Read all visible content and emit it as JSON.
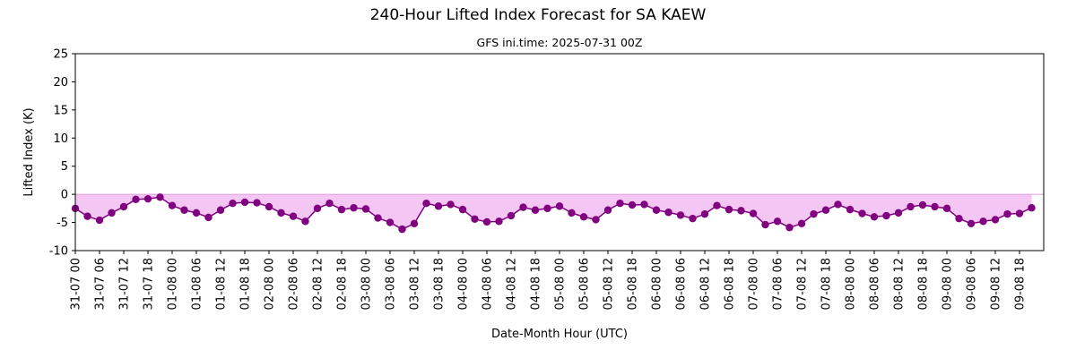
{
  "chart_data": {
    "type": "line",
    "title": "240-Hour Lifted Index Forecast for SA KAEW",
    "subtitle": "GFS ini.time: 2025-07-31 00Z",
    "xlabel": "Date-Month Hour (UTC)",
    "ylabel": "Lifted Index (K)",
    "ylim": [
      -10,
      25
    ],
    "yticks": [
      -10,
      -5,
      0,
      5,
      10,
      15,
      20,
      25
    ],
    "grid": false,
    "fill_below_zero": true,
    "colors": {
      "line": "#800080",
      "fill": "#f3c6f3",
      "zero_line": "#dda0dd"
    },
    "x_start_hour": 0,
    "x_end_hour": 240,
    "step_hours": 3,
    "x_tick_labels": [
      "31-07 00",
      "31-07 06",
      "31-07 12",
      "31-07 18",
      "01-08 00",
      "01-08 06",
      "01-08 12",
      "01-08 18",
      "02-08 00",
      "02-08 06",
      "02-08 12",
      "02-08 18",
      "03-08 00",
      "03-08 06",
      "03-08 12",
      "03-08 18",
      "04-08 00",
      "04-08 06",
      "04-08 12",
      "04-08 18",
      "05-08 00",
      "05-08 06",
      "05-08 12",
      "05-08 18",
      "06-08 00",
      "06-08 06",
      "06-08 12",
      "06-08 18",
      "07-08 00",
      "07-08 06",
      "07-08 12",
      "07-08 18",
      "08-08 00",
      "08-08 06",
      "08-08 12",
      "08-08 18",
      "09-08 00",
      "09-08 06",
      "09-08 12",
      "09-08 18"
    ],
    "series": [
      {
        "values": [
          -2.5,
          -3.9,
          -4.6,
          -3.3,
          -2.2,
          -0.9,
          -0.8,
          -0.5,
          -2.0,
          -2.8,
          -3.3,
          -4.1,
          -2.8,
          -1.6,
          -1.4,
          -1.5,
          -2.2,
          -3.3,
          -3.9,
          -4.8,
          -2.5,
          -1.6,
          -2.7,
          -2.4,
          -2.6,
          -4.2,
          -5.0,
          -6.2,
          -5.2,
          -1.6,
          -2.1,
          -1.8,
          -2.7,
          -4.4,
          -4.9,
          -4.8,
          -3.8,
          -2.3,
          -2.8,
          -2.5,
          -2.1,
          -3.3,
          -4.0,
          -4.5,
          -2.8,
          -1.6,
          -1.9,
          -1.8,
          -2.8,
          -3.2,
          -3.7,
          -4.3,
          -3.5,
          -2.0,
          -2.7,
          -2.9,
          -3.4,
          -5.4,
          -4.8,
          -5.9,
          -5.2,
          -3.5,
          -2.8,
          -1.8,
          -2.7,
          -3.4,
          -4.0,
          -3.8,
          -3.3,
          -2.2,
          -1.9,
          -2.2,
          -2.5,
          -4.3,
          -5.2,
          -4.8,
          -4.5,
          -3.5,
          -3.4,
          -2.4
        ]
      }
    ]
  }
}
